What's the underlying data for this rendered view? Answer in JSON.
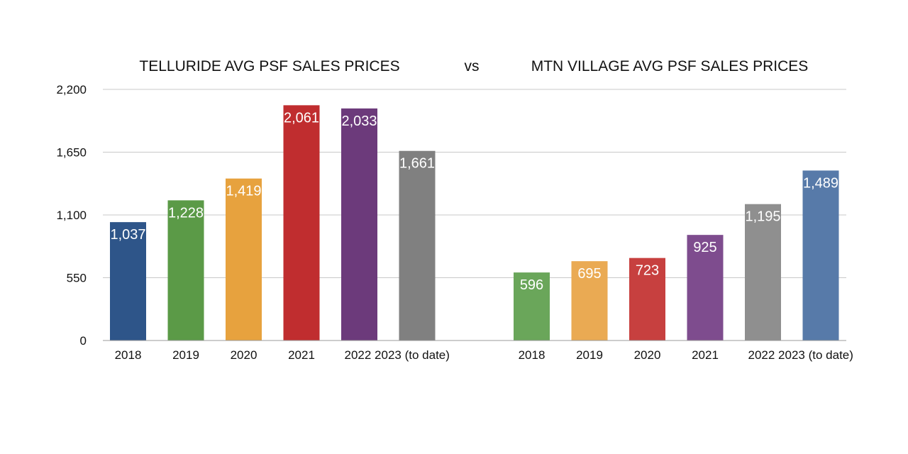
{
  "header": {
    "left_title": "TELLURIDE AVG PSF SALES PRICES",
    "vs": "vs",
    "right_title": "MTN VILLAGE AVG PSF SALES PRICES"
  },
  "chart_data": {
    "type": "bar",
    "ylim": [
      0,
      2200
    ],
    "yticks": [
      0,
      550,
      1100,
      1650,
      2200
    ],
    "ytick_labels": [
      "0",
      "550",
      "1,100",
      "1,650",
      "2,200"
    ],
    "grid": true,
    "groups": [
      {
        "name": "TELLURIDE AVG PSF SALES PRICES",
        "categories": [
          "2018",
          "2019",
          "2020",
          "2021",
          "2022",
          "2023 (to date)"
        ],
        "values": [
          1037,
          1228,
          1419,
          2061,
          2033,
          1661
        ],
        "labels": [
          "1,037",
          "1,228",
          "1,419",
          "2,061",
          "2,033",
          "1,661"
        ],
        "colors": [
          "#2e5589",
          "#5b9a47",
          "#e7a23e",
          "#c02d2f",
          "#6c3a7b",
          "#808080"
        ]
      },
      {
        "name": "MTN VILLAGE AVG PSF SALES PRICES",
        "categories": [
          "2018",
          "2019",
          "2020",
          "2021",
          "2022",
          "2023 (to date)"
        ],
        "values": [
          596,
          695,
          723,
          925,
          1195,
          1489
        ],
        "labels": [
          "596",
          "695",
          "723",
          "925",
          "1,195",
          "1,489"
        ],
        "colors": [
          "#6aa65a",
          "#eaaa53",
          "#c7403f",
          "#7e4c8e",
          "#8f8f8f",
          "#577aa9"
        ]
      }
    ]
  }
}
